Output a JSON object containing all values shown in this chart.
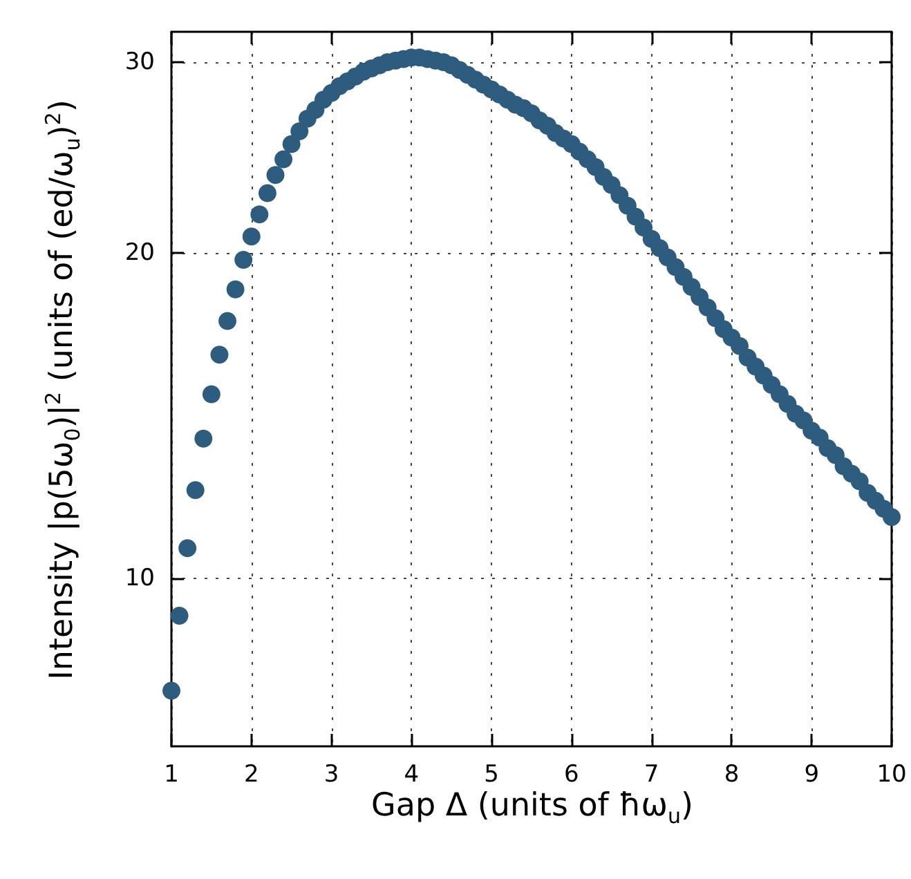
{
  "chart_data": {
    "type": "scatter",
    "xlabel": "Gap Δ (units of ħω$_{u}$)",
    "ylabel": "Intensity |p(5ω$_{0}$)|$^{2}$ (units of (ed/ω$_{u}$)$^{2}$)",
    "x": [
      1.0,
      1.1,
      1.2,
      1.3,
      1.4,
      1.5,
      1.6,
      1.7,
      1.8,
      1.9,
      2.0,
      2.1,
      2.2,
      2.3,
      2.4,
      2.5,
      2.6,
      2.7,
      2.8,
      2.9,
      3.0,
      3.1,
      3.2,
      3.3,
      3.4,
      3.5,
      3.6,
      3.7,
      3.8,
      3.9,
      4.0,
      4.1,
      4.2,
      4.3,
      4.4,
      4.5,
      4.6,
      4.7,
      4.8,
      4.9,
      5.0,
      5.1,
      5.2,
      5.3,
      5.4,
      5.5,
      5.6,
      5.7,
      5.8,
      5.9,
      6.0,
      6.1,
      6.2,
      6.3,
      6.4,
      6.5,
      6.6,
      6.7,
      6.8,
      6.9,
      7.0,
      7.1,
      7.2,
      7.3,
      7.4,
      7.5,
      7.6,
      7.7,
      7.8,
      7.9,
      8.0,
      8.1,
      8.2,
      8.3,
      8.4,
      8.5,
      8.6,
      8.7,
      8.8,
      8.9,
      9.0,
      9.1,
      9.2,
      9.3,
      9.4,
      9.5,
      9.6,
      9.7,
      9.8,
      9.9,
      10.0
    ],
    "series": [
      {
        "color": "#2e5c7e",
        "values": [
          7.88,
          9.24,
          10.67,
          12.07,
          13.47,
          14.8,
          16.1,
          17.3,
          18.5,
          19.7,
          20.7,
          21.7,
          22.7,
          23.6,
          24.4,
          25.2,
          25.9,
          26.6,
          27.1,
          27.7,
          28.1,
          28.5,
          28.8,
          29.1,
          29.4,
          29.6,
          29.8,
          30.0,
          30.1,
          30.2,
          30.3,
          30.3,
          30.2,
          30.1,
          30.0,
          29.8,
          29.5,
          29.2,
          28.9,
          28.6,
          28.3,
          28.0,
          27.7,
          27.4,
          27.2,
          26.9,
          26.5,
          26.2,
          25.8,
          25.5,
          25.2,
          24.8,
          24.4,
          24.0,
          23.5,
          23.1,
          22.6,
          22.1,
          21.6,
          21.1,
          20.6,
          20.2,
          19.8,
          19.4,
          19.0,
          18.6,
          18.2,
          17.8,
          17.4,
          17.0,
          16.7,
          16.4,
          16.0,
          15.7,
          15.4,
          15.1,
          14.8,
          14.5,
          14.2,
          14.0,
          13.7,
          13.5,
          13.2,
          13.0,
          12.7,
          12.5,
          12.3,
          12.0,
          11.8,
          11.6,
          11.4
        ]
      }
    ],
    "xlim": [
      1,
      10
    ],
    "xticks": [
      1,
      2,
      3,
      4,
      5,
      6,
      7,
      8,
      9,
      10
    ],
    "ylim": [
      7,
      32
    ],
    "yticks": [
      10,
      20,
      30
    ],
    "log": "y",
    "grid": true,
    "marker": "circle"
  }
}
